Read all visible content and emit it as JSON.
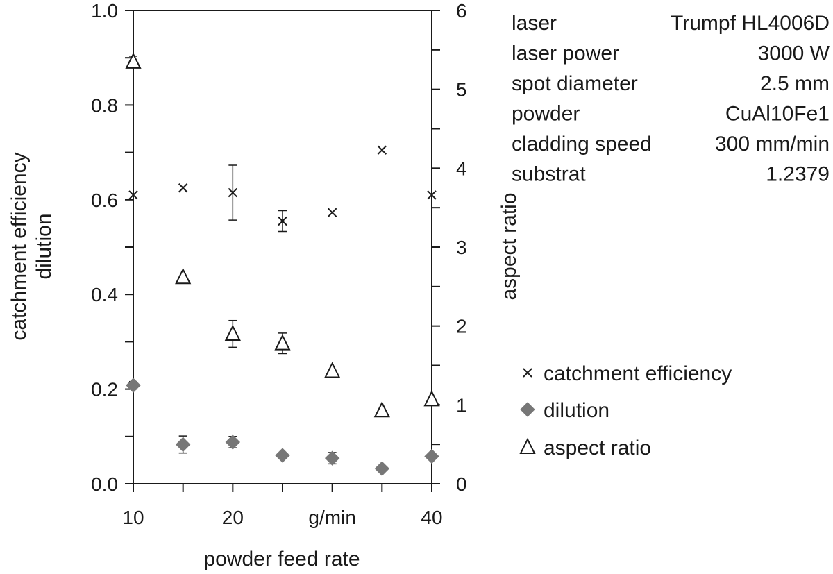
{
  "chart_data": {
    "type": "scatter",
    "xlabel": "powder feed rate",
    "x_ticks": [
      "10",
      "20",
      "g/min",
      "40"
    ],
    "x_tick_values": [
      10,
      20,
      30,
      40
    ],
    "x_minor_ticks": [
      15,
      25,
      35
    ],
    "xlim": [
      10,
      40
    ],
    "ylabel_left": [
      "catchment efficiency",
      "dilution"
    ],
    "ylim_left": [
      0,
      1
    ],
    "y_ticks_left": [
      "0.0",
      "0.2",
      "0.4",
      "0.6",
      "0.8",
      "1.0"
    ],
    "y_tick_values_left": [
      0,
      0.2,
      0.4,
      0.6,
      0.8,
      1.0
    ],
    "ylabel_right": "aspect ratio",
    "ylim_right": [
      0,
      6
    ],
    "y_ticks_right": [
      "0",
      "1",
      "2",
      "3",
      "4",
      "5",
      "6"
    ],
    "y_tick_values_right": [
      0,
      1,
      2,
      3,
      4,
      5,
      6
    ],
    "grid": false,
    "legend_position": "right",
    "series": [
      {
        "name": "catchment efficiency",
        "axis": "left",
        "marker": "x",
        "color": "#1a1a1a",
        "points": [
          {
            "x": 10,
            "y": 0.61
          },
          {
            "x": 15,
            "y": 0.625
          },
          {
            "x": 20,
            "y": 0.615,
            "err": 0.058
          },
          {
            "x": 25,
            "y": 0.555,
            "err": 0.022
          },
          {
            "x": 30,
            "y": 0.573
          },
          {
            "x": 35,
            "y": 0.705
          },
          {
            "x": 40,
            "y": 0.61
          }
        ]
      },
      {
        "name": "dilution",
        "axis": "left",
        "marker": "diamond",
        "color": "#777777",
        "points": [
          {
            "x": 10,
            "y": 0.208,
            "err": 0.008
          },
          {
            "x": 15,
            "y": 0.083,
            "err": 0.018
          },
          {
            "x": 20,
            "y": 0.088,
            "err": 0.012
          },
          {
            "x": 25,
            "y": 0.06
          },
          {
            "x": 30,
            "y": 0.054,
            "err": 0.012
          },
          {
            "x": 35,
            "y": 0.032
          },
          {
            "x": 40,
            "y": 0.058
          }
        ]
      },
      {
        "name": "aspect ratio",
        "axis": "right",
        "marker": "triangle",
        "color": "#1a1a1a",
        "points": [
          {
            "x": 10,
            "y": 5.35,
            "err": 0.07
          },
          {
            "x": 15,
            "y": 2.62
          },
          {
            "x": 20,
            "y": 1.9,
            "err": 0.17
          },
          {
            "x": 25,
            "y": 1.78,
            "err": 0.13
          },
          {
            "x": 30,
            "y": 1.43
          },
          {
            "x": 35,
            "y": 0.93
          },
          {
            "x": 40,
            "y": 1.07
          }
        ]
      }
    ]
  },
  "info_table": [
    {
      "label": "laser",
      "value": "Trumpf HL4006D"
    },
    {
      "label": "laser power",
      "value": "3000 W"
    },
    {
      "label": "spot diameter",
      "value": "2.5 mm"
    },
    {
      "label": "powder",
      "value": "CuAl10Fe1"
    },
    {
      "label": "cladding speed",
      "value": "300 mm/min"
    },
    {
      "label": "substrat",
      "value": "1.2379"
    }
  ]
}
